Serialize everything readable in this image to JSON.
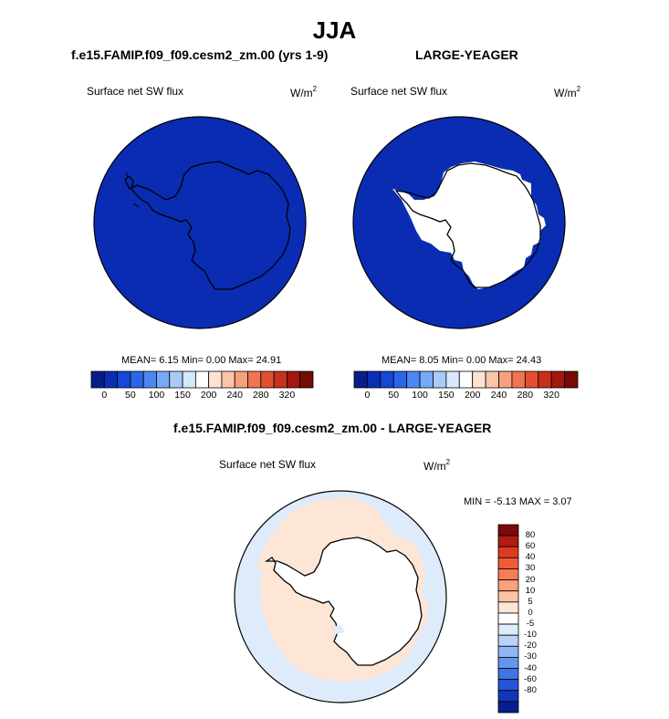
{
  "title": "JJA",
  "panels": {
    "left": {
      "title": "f.e15.FAMIP.f09_f09.cesm2_zm.00 (yrs 1-9)",
      "variable": "Surface net SW flux",
      "units_base": "W/m",
      "units_exp": "2",
      "stats": "MEAN=   6.15  Min=   0.00  Max=  24.91"
    },
    "right": {
      "title": "LARGE-YEAGER",
      "variable": "Surface net SW flux",
      "units_base": "W/m",
      "units_exp": "2",
      "stats": "MEAN=   8.05  Min=   0.00  Max=  24.43"
    },
    "diff": {
      "title": "f.e15.FAMIP.f09_f09.cesm2_zm.00 - LARGE-YEAGER",
      "variable": "Surface net SW flux",
      "units_base": "W/m",
      "units_exp": "2",
      "stats": "MIN =  -5.13 MAX =   3.07"
    }
  },
  "colorbar_main": {
    "colors": [
      "#081d8c",
      "#0b2fb4",
      "#1548d6",
      "#2a66ea",
      "#4c88f2",
      "#77aaf6",
      "#a8cbf8",
      "#d6e8fb",
      "#ffffff",
      "#fde4d2",
      "#fbc6a8",
      "#f7a07c",
      "#f07650",
      "#e34f2f",
      "#c8301c",
      "#a21810",
      "#760a06"
    ],
    "ticks": [
      "0",
      "50",
      "100",
      "150",
      "200",
      "240",
      "280",
      "320"
    ]
  },
  "colorbar_diff": {
    "colors": [
      "#7a0a08",
      "#b21a12",
      "#dc3c20",
      "#f05a36",
      "#f87d55",
      "#fca07c",
      "#fdc3a6",
      "#fde6d6",
      "#ffffff",
      "#ddebfb",
      "#b8d2f8",
      "#8db6f3",
      "#6496ee",
      "#3f74e6",
      "#2554d8",
      "#1236b8",
      "#0a1d8c"
    ],
    "labels": [
      "80",
      "60",
      "40",
      "30",
      "20",
      "10",
      "5",
      "0",
      "-5",
      "-10",
      "-20",
      "-30",
      "-40",
      "-60",
      "-80"
    ]
  },
  "map_colors": {
    "ocean_low": "#0a2cb3",
    "land": "#ffffff",
    "diff_pos": "#fde6d6",
    "diff_neg": "#ddebfb"
  }
}
